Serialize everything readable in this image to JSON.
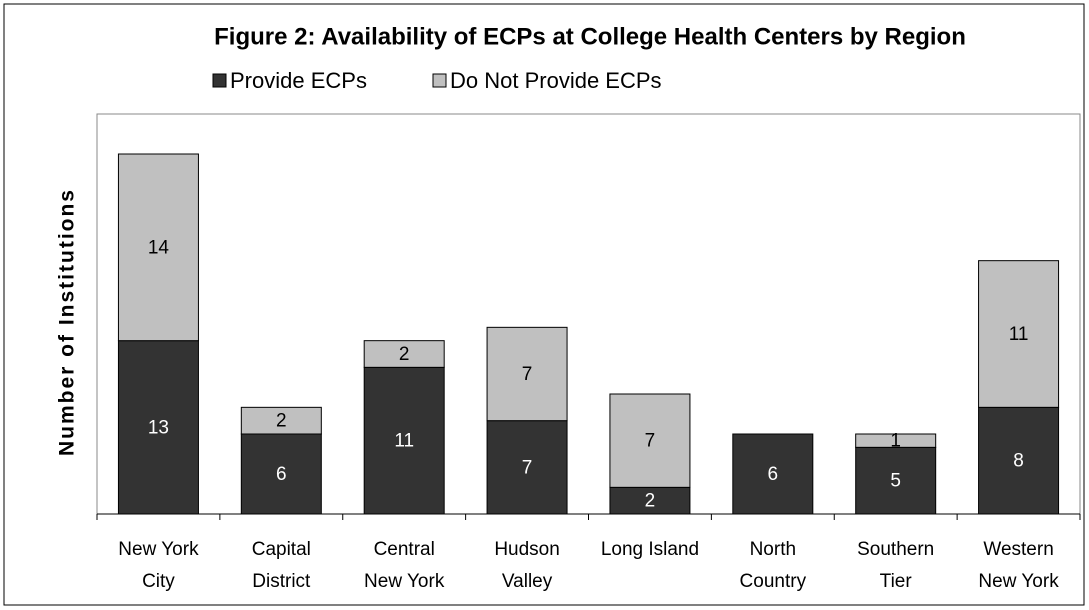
{
  "chart_data": {
    "type": "stacked_bar",
    "title": "Figure 2: Availability of ECPs at College Health Centers by Region",
    "ylabel": "Number of Institutions",
    "categories": [
      [
        "New York",
        "City"
      ],
      [
        "Capital",
        "District"
      ],
      [
        "Central",
        "New York"
      ],
      [
        "Hudson",
        "Valley"
      ],
      [
        "Long Island"
      ],
      [
        "North",
        "Country"
      ],
      [
        "Southern",
        "Tier"
      ],
      [
        "Western",
        "New York"
      ]
    ],
    "series": [
      {
        "name": "Provide ECPs",
        "color": "#333333",
        "label_color": "#ffffff",
        "values": [
          13,
          6,
          11,
          7,
          2,
          6,
          5,
          8
        ]
      },
      {
        "name": "Do Not Provide ECPs",
        "color": "#c0c0c0",
        "label_color": "#000000",
        "values": [
          14,
          2,
          2,
          7,
          7,
          0,
          1,
          11
        ]
      }
    ],
    "ylim": [
      0,
      30
    ],
    "legend": "top"
  }
}
